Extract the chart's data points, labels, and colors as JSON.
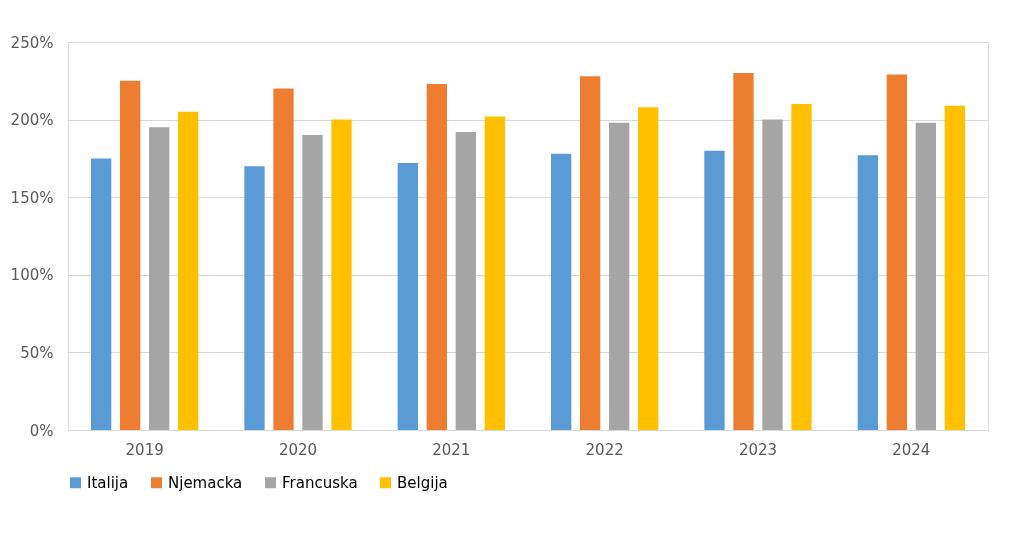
{
  "chart_data": {
    "type": "bar",
    "categories": [
      "2019",
      "2020",
      "2021",
      "2022",
      "2023",
      "2024"
    ],
    "series": [
      {
        "name": "Italija",
        "color": "#5b9bd5",
        "values": [
          175,
          170,
          172,
          178,
          180,
          177
        ]
      },
      {
        "name": "Njemacka",
        "color": "#ed7d31",
        "values": [
          225,
          220,
          223,
          228,
          230,
          229
        ]
      },
      {
        "name": "Francuska",
        "color": "#a5a5a5",
        "values": [
          195,
          190,
          192,
          198,
          200,
          198
        ]
      },
      {
        "name": "Belgija",
        "color": "#ffc000",
        "values": [
          205,
          200,
          202,
          208,
          210,
          209
        ]
      }
    ],
    "ylim": [
      0,
      250
    ],
    "yticks": [
      {
        "value": 0,
        "label": "0%"
      },
      {
        "value": 50,
        "label": "50%"
      },
      {
        "value": 100,
        "label": "100%"
      },
      {
        "value": 150,
        "label": "150%"
      },
      {
        "value": 200,
        "label": "200%"
      },
      {
        "value": 250,
        "label": "250%"
      }
    ],
    "grid": "y",
    "legend": "bottom"
  }
}
